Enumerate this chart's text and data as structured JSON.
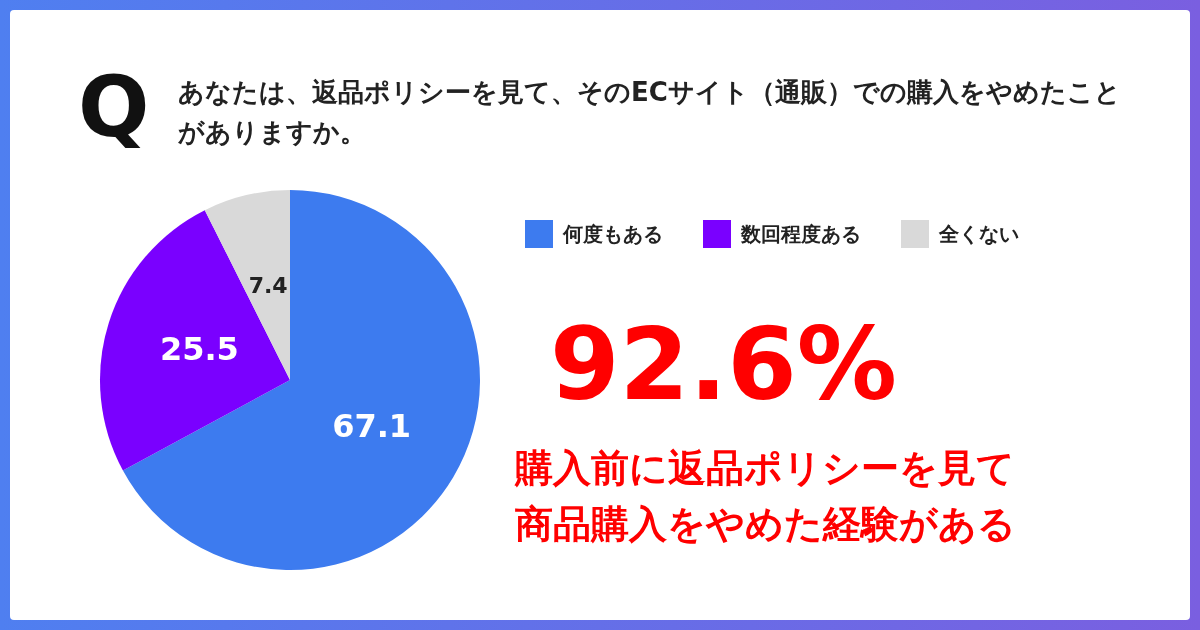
{
  "chart_data": {
    "type": "pie",
    "title": "あなたは、返品ポリシーを見て、そのECサイト（通販）での購入をやめたことがありますか。",
    "categories": [
      "何度もある",
      "数回程度ある",
      "全くない"
    ],
    "values": [
      67.1,
      25.5,
      7.4
    ],
    "colors": [
      "#3d7bef",
      "#7a00ff",
      "#d9d9d9"
    ],
    "data_labels": true,
    "legend": "top right",
    "annotations": [
      "Q",
      "92.6%",
      "購入前に返品ポリシーを見て",
      "商品購入をやめた経験がある"
    ]
  }
}
